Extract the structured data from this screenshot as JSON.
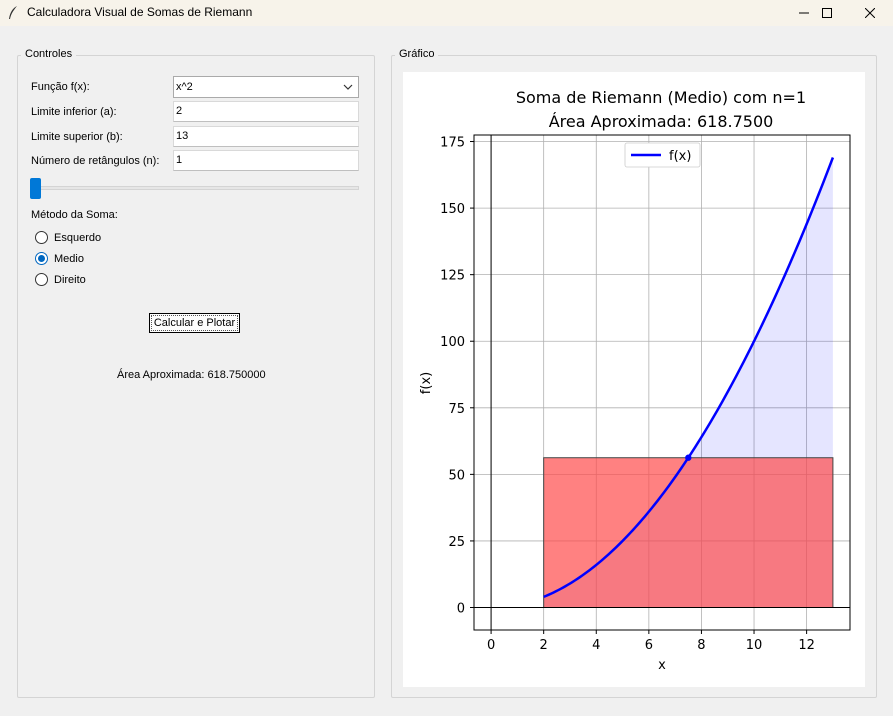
{
  "window": {
    "title": "Calculadora Visual de Somas de Riemann",
    "minimize_glyph": "—",
    "maximize_glyph": "☐",
    "close_glyph": "✕"
  },
  "controls": {
    "group_label": "Controles",
    "function_label": "Função f(x):",
    "function_value": "x^2",
    "lower_label": "Limite inferior (a):",
    "lower_value": "2",
    "upper_label": "Limite superior (b):",
    "upper_value": "13",
    "n_label": "Número de retângulos (n):",
    "n_value": "1",
    "slider_value": 1,
    "method_label": "Método da Soma:",
    "methods": [
      {
        "label": "Esquerdo",
        "selected": false
      },
      {
        "label": "Medio",
        "selected": true
      },
      {
        "label": "Direito",
        "selected": false
      }
    ],
    "calc_button": "Calcular e Plotar",
    "area_text": "Área Aproximada: 618.750000"
  },
  "graph": {
    "group_label": "Gráfico"
  },
  "chart_data": {
    "type": "line",
    "title_line1": "Soma de Riemann (Medio) com n=1",
    "title_line2": "Área Aproximada: 618.7500",
    "xlabel": "x",
    "ylabel": "f(x)",
    "xlim": [
      -0.65,
      13.65
    ],
    "ylim": [
      -8.45,
      177.45
    ],
    "xticks": [
      0,
      2,
      4,
      6,
      8,
      10,
      12
    ],
    "yticks": [
      0,
      25,
      50,
      75,
      100,
      125,
      150,
      175
    ],
    "grid": true,
    "legend": {
      "position": "top-center",
      "entries": [
        "f(x)"
      ]
    },
    "series": [
      {
        "name": "f(x)",
        "function": "x^2",
        "domain": [
          2,
          13
        ],
        "color": "#0000ff"
      }
    ],
    "fill_under_curve": {
      "color": "#0000ff",
      "alpha": 0.1,
      "domain": [
        2,
        13
      ]
    },
    "rectangles": [
      {
        "x0": 2,
        "x1": 13,
        "height": 56.25,
        "color": "#ff4c4c",
        "alpha": 0.7
      }
    ],
    "sample_points": [
      {
        "x": 7.5,
        "y": 56.25
      }
    ]
  }
}
